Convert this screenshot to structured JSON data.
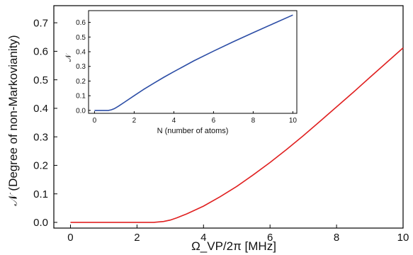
{
  "chart_data": [
    {
      "type": "line",
      "xlabel": "Ω_VP/2π [MHz]",
      "ylabel": "𝒩 (Degree of non-Markovianity)",
      "xlim": [
        -0.5,
        10
      ],
      "ylim": [
        -0.02,
        0.76
      ],
      "x_ticks": [
        "0",
        "2",
        "4",
        "6",
        "8",
        "10"
      ],
      "y_ticks": [
        "0.0",
        "0.1",
        "0.2",
        "0.3",
        "0.4",
        "0.5",
        "0.6",
        "0.7"
      ],
      "series": [
        {
          "color": "#e02020",
          "x": [
            0,
            1,
            2,
            2.5,
            2.8,
            3.0,
            3.2,
            3.5,
            4,
            4.5,
            5,
            5.5,
            6,
            6.5,
            7,
            7.5,
            8,
            8.5,
            9,
            9.5,
            10
          ],
          "y": [
            0,
            0,
            0,
            0.0,
            0.003,
            0.008,
            0.016,
            0.03,
            0.057,
            0.09,
            0.126,
            0.167,
            0.21,
            0.256,
            0.304,
            0.354,
            0.405,
            0.456,
            0.508,
            0.56,
            0.612
          ]
        }
      ]
    },
    {
      "type": "line",
      "xlabel": "N (number of atoms)",
      "ylabel": "𝒩",
      "xlim": [
        -0.3,
        10.2
      ],
      "ylim": [
        -0.02,
        0.68
      ],
      "x_ticks": [
        "0",
        "2",
        "4",
        "6",
        "8",
        "10"
      ],
      "y_ticks": [
        "0.0",
        "0.1",
        "0.2",
        "0.3",
        "0.4",
        "0.5",
        "0.6"
      ],
      "series": [
        {
          "color": "#2d4ea6",
          "x": [
            0,
            0.5,
            0.7,
            0.85,
            1.0,
            1.2,
            1.5,
            2,
            2.5,
            3,
            3.5,
            4,
            5,
            6,
            7,
            8,
            9,
            10
          ],
          "y": [
            0,
            0,
            0.0,
            0.004,
            0.012,
            0.028,
            0.055,
            0.1,
            0.145,
            0.186,
            0.226,
            0.264,
            0.337,
            0.404,
            0.468,
            0.53,
            0.59,
            0.65
          ]
        }
      ]
    }
  ]
}
